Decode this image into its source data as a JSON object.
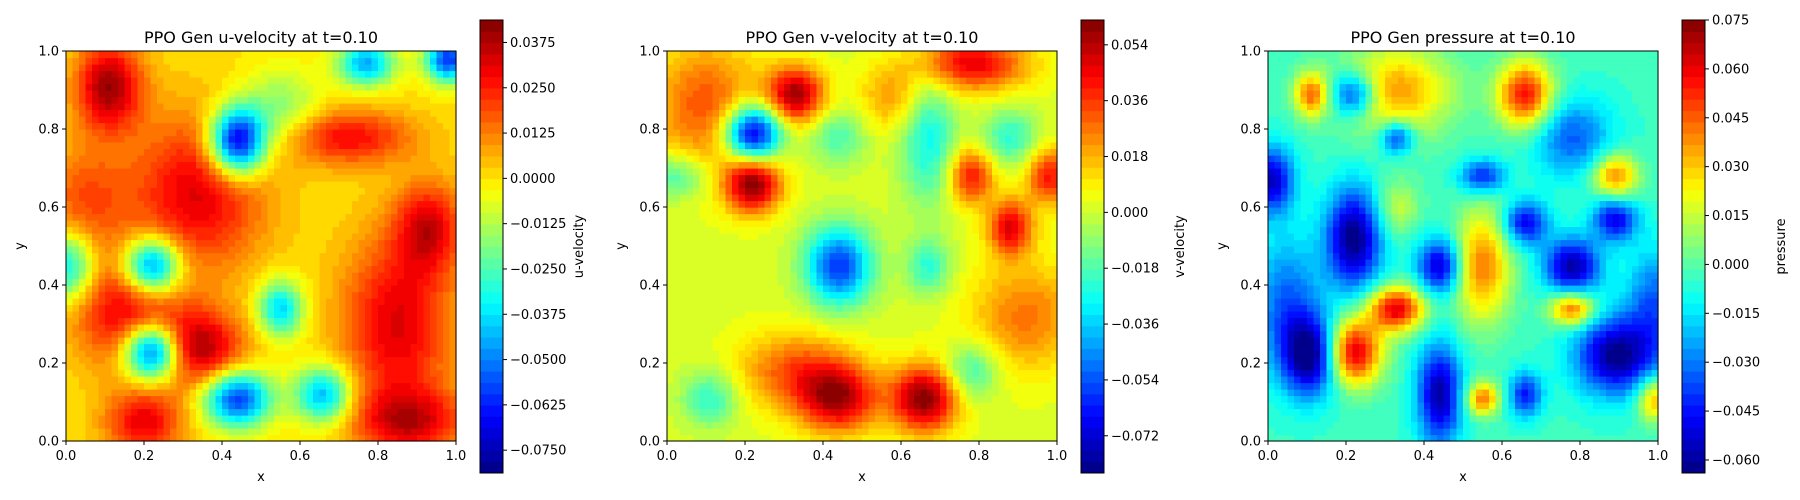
{
  "chart_data": [
    {
      "type": "heatmap",
      "title": "PPO Gen u-velocity at t=0.10",
      "xlabel": "x",
      "ylabel": "y",
      "xlim": [
        0.0,
        1.0
      ],
      "ylim": [
        0.0,
        1.0
      ],
      "xticks": [
        "0.0",
        "0.2",
        "0.4",
        "0.6",
        "0.8",
        "1.0"
      ],
      "yticks": [
        "0.0",
        "0.2",
        "0.4",
        "0.6",
        "0.8",
        "1.0"
      ],
      "colorbar": {
        "label": "u-velocity",
        "range": [
          -0.0813,
          0.0437
        ],
        "ticks": [
          -0.075,
          -0.0625,
          -0.05,
          -0.0375,
          -0.025,
          -0.0125,
          0.0,
          0.0125,
          0.025,
          0.0375
        ],
        "tick_labels": [
          "−0.0750",
          "−0.0625",
          "−0.0500",
          "−0.0375",
          "−0.0250",
          "−0.0125",
          "0.0000",
          "0.0125",
          "0.0250",
          "0.0375"
        ]
      },
      "colormap": "jet",
      "background": 0.0,
      "features": [
        [
          0.11,
          0.91,
          0.06,
          0.08,
          0.04
        ],
        [
          0.44,
          0.77,
          0.05,
          0.06,
          -0.078
        ],
        [
          0.22,
          0.45,
          0.05,
          0.05,
          -0.06
        ],
        [
          0.22,
          0.23,
          0.05,
          0.05,
          -0.07
        ],
        [
          0.44,
          0.11,
          0.06,
          0.05,
          -0.06
        ],
        [
          0.34,
          0.64,
          0.12,
          0.14,
          0.032
        ],
        [
          0.34,
          0.24,
          0.08,
          0.07,
          0.038
        ],
        [
          0.15,
          0.33,
          0.09,
          0.1,
          0.03
        ],
        [
          0.72,
          0.78,
          0.12,
          0.05,
          0.028
        ],
        [
          0.85,
          0.3,
          0.1,
          0.16,
          0.032
        ],
        [
          0.55,
          0.34,
          0.04,
          0.05,
          -0.04
        ],
        [
          0.66,
          0.12,
          0.05,
          0.05,
          -0.045
        ],
        [
          0.98,
          0.98,
          0.04,
          0.04,
          -0.06
        ],
        [
          0.93,
          0.55,
          0.06,
          0.08,
          0.03
        ],
        [
          0.2,
          0.05,
          0.07,
          0.06,
          0.03
        ],
        [
          0.88,
          0.05,
          0.1,
          0.06,
          0.03
        ],
        [
          0.05,
          0.62,
          0.08,
          0.1,
          0.018
        ],
        [
          0.55,
          0.85,
          0.07,
          0.07,
          -0.02
        ],
        [
          0.0,
          0.45,
          0.05,
          0.06,
          -0.04
        ],
        [
          0.77,
          0.97,
          0.05,
          0.04,
          -0.045
        ]
      ]
    },
    {
      "type": "heatmap",
      "title": "PPO Gen v-velocity at t=0.10",
      "xlabel": "x",
      "ylabel": "y",
      "xlim": [
        0.0,
        1.0
      ],
      "ylim": [
        0.0,
        1.0
      ],
      "xticks": [
        "0.0",
        "0.2",
        "0.4",
        "0.6",
        "0.8",
        "1.0"
      ],
      "yticks": [
        "0.0",
        "0.2",
        "0.4",
        "0.6",
        "0.8",
        "1.0"
      ],
      "colorbar": {
        "label": "v-velocity",
        "range": [
          -0.084,
          0.062
        ],
        "ticks": [
          -0.072,
          -0.054,
          -0.036,
          -0.018,
          0.0,
          0.018,
          0.036,
          0.054
        ],
        "tick_labels": [
          "−0.072",
          "−0.054",
          "−0.036",
          "−0.018",
          "0.000",
          "0.018",
          "0.036",
          "0.054"
        ]
      },
      "colormap": "jet",
      "background": 0.002,
      "features": [
        [
          0.22,
          0.79,
          0.05,
          0.05,
          -0.08
        ],
        [
          0.33,
          0.89,
          0.05,
          0.05,
          0.055
        ],
        [
          0.22,
          0.66,
          0.05,
          0.05,
          0.058
        ],
        [
          0.1,
          0.86,
          0.1,
          0.12,
          0.03
        ],
        [
          0.44,
          0.45,
          0.06,
          0.07,
          -0.06
        ],
        [
          0.66,
          0.11,
          0.06,
          0.06,
          0.06
        ],
        [
          0.44,
          0.11,
          0.07,
          0.06,
          0.05
        ],
        [
          0.33,
          0.18,
          0.1,
          0.07,
          0.03
        ],
        [
          0.78,
          0.97,
          0.1,
          0.05,
          0.045
        ],
        [
          0.88,
          0.55,
          0.04,
          0.05,
          0.045
        ],
        [
          0.78,
          0.68,
          0.04,
          0.05,
          0.04
        ],
        [
          0.98,
          0.68,
          0.04,
          0.05,
          0.04
        ],
        [
          0.67,
          0.78,
          0.05,
          0.12,
          -0.03
        ],
        [
          0.88,
          0.78,
          0.05,
          0.05,
          -0.025
        ],
        [
          0.44,
          0.78,
          0.05,
          0.05,
          -0.02
        ],
        [
          0.67,
          0.45,
          0.04,
          0.05,
          -0.025
        ],
        [
          0.78,
          0.18,
          0.05,
          0.05,
          -0.025
        ],
        [
          0.11,
          0.11,
          0.05,
          0.05,
          -0.025
        ],
        [
          0.02,
          0.68,
          0.06,
          0.04,
          -0.025
        ],
        [
          0.92,
          0.32,
          0.1,
          0.1,
          0.025
        ],
        [
          0.58,
          0.88,
          0.06,
          0.06,
          0.02
        ]
      ]
    },
    {
      "type": "heatmap",
      "title": "PPO Gen pressure at t=0.10",
      "xlabel": "x",
      "ylabel": "y",
      "xlim": [
        0.0,
        1.0
      ],
      "ylim": [
        0.0,
        1.0
      ],
      "xticks": [
        "0.0",
        "0.2",
        "0.4",
        "0.6",
        "0.8",
        "1.0"
      ],
      "yticks": [
        "0.0",
        "0.2",
        "0.4",
        "0.6",
        "0.8",
        "1.0"
      ],
      "colorbar": {
        "label": "pressure",
        "range": [
          -0.064,
          0.075
        ],
        "ticks": [
          -0.06,
          -0.045,
          -0.03,
          -0.015,
          0.0,
          0.015,
          0.03,
          0.045,
          0.06,
          0.075
        ],
        "tick_labels": [
          "−0.060",
          "−0.045",
          "−0.030",
          "−0.015",
          "0.000",
          "0.015",
          "0.030",
          "0.045",
          "0.060",
          "0.075"
        ]
      },
      "colormap": "jet",
      "background": -0.004,
      "features": [
        [
          0.22,
          0.23,
          0.05,
          0.06,
          0.068
        ],
        [
          0.33,
          0.34,
          0.05,
          0.04,
          0.065
        ],
        [
          0.66,
          0.89,
          0.05,
          0.06,
          0.06
        ],
        [
          0.55,
          0.45,
          0.05,
          0.1,
          0.045
        ],
        [
          0.33,
          0.9,
          0.1,
          0.08,
          0.04
        ],
        [
          0.11,
          0.89,
          0.03,
          0.04,
          0.045
        ],
        [
          0.89,
          0.68,
          0.04,
          0.04,
          0.045
        ],
        [
          0.78,
          0.34,
          0.04,
          0.03,
          0.05
        ],
        [
          0.55,
          0.11,
          0.03,
          0.03,
          0.045
        ],
        [
          0.99,
          0.11,
          0.03,
          0.04,
          0.04
        ],
        [
          0.22,
          0.52,
          0.05,
          0.09,
          -0.06
        ],
        [
          0.11,
          0.22,
          0.05,
          0.07,
          -0.06
        ],
        [
          0.89,
          0.22,
          0.07,
          0.07,
          -0.058
        ],
        [
          0.78,
          0.45,
          0.05,
          0.05,
          -0.055
        ],
        [
          0.44,
          0.45,
          0.04,
          0.05,
          -0.05
        ],
        [
          0.44,
          0.12,
          0.04,
          0.09,
          -0.055
        ],
        [
          0.01,
          0.67,
          0.04,
          0.06,
          -0.05
        ],
        [
          0.22,
          0.89,
          0.04,
          0.04,
          -0.045
        ],
        [
          0.66,
          0.56,
          0.04,
          0.04,
          -0.045
        ],
        [
          0.89,
          0.57,
          0.04,
          0.04,
          -0.045
        ],
        [
          0.55,
          0.68,
          0.04,
          0.03,
          -0.04
        ],
        [
          0.66,
          0.12,
          0.03,
          0.04,
          -0.04
        ],
        [
          0.33,
          0.78,
          0.03,
          0.03,
          -0.04
        ],
        [
          0.05,
          0.35,
          0.06,
          0.12,
          -0.03
        ],
        [
          0.78,
          0.78,
          0.07,
          0.07,
          -0.03
        ],
        [
          0.99,
          0.35,
          0.05,
          0.1,
          -0.03
        ],
        [
          0.33,
          0.6,
          0.04,
          0.05,
          0.02
        ]
      ]
    }
  ]
}
